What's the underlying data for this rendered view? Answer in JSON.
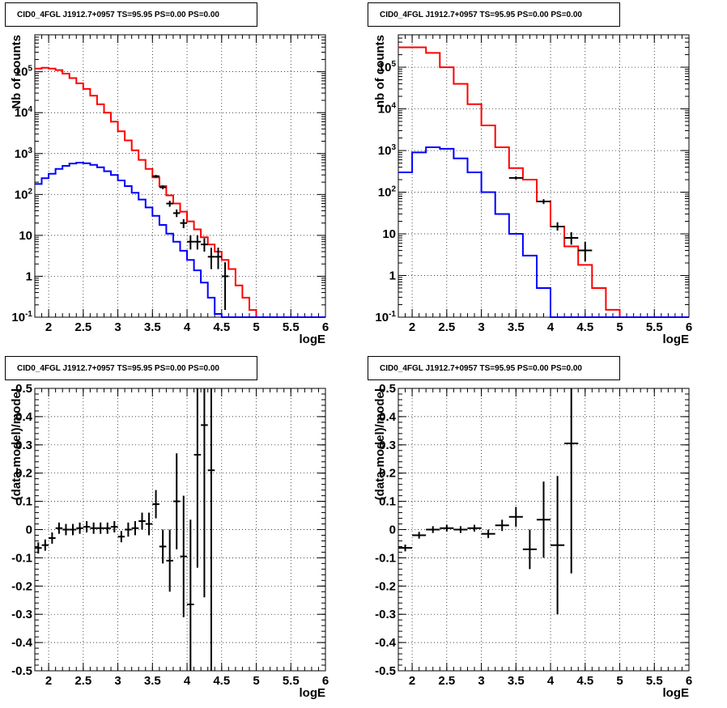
{
  "chart_data": [
    {
      "type": "line",
      "title": "CID0_4FGL J1912.7+0957 TS=95.95 PS=0.00 PS=0.00",
      "xlabel": "logE",
      "ylabel": "Nb of counts",
      "xlim": [
        1.8,
        6.0
      ],
      "ylim": [
        0.1,
        800000
      ],
      "yscale": "log",
      "grid": true,
      "xticks": [
        "2",
        "2.5",
        "3",
        "3.5",
        "4",
        "4.5",
        "5",
        "5.5",
        "6"
      ],
      "yticks": [
        "10^-1",
        "1",
        "10",
        "10^2",
        "10^3",
        "10^4",
        "10^5"
      ],
      "bin_edges": [
        1.8,
        1.9,
        2.0,
        2.1,
        2.2,
        2.3,
        2.4,
        2.5,
        2.6,
        2.7,
        2.8,
        2.9,
        3.0,
        3.1,
        3.2,
        3.3,
        3.4,
        3.5,
        3.6,
        3.7,
        3.8,
        3.9,
        4.0,
        4.1,
        4.2,
        4.3,
        4.4,
        4.5,
        4.6,
        4.7,
        4.8,
        4.9,
        5.0,
        5.1,
        5.2,
        5.3,
        5.4,
        5.5,
        5.6,
        5.7,
        5.8,
        5.9,
        6.0
      ],
      "series": [
        {
          "color": "#ff0000",
          "values": [
            120000,
            125000,
            120000,
            110000,
            90000,
            70000,
            52000,
            38000,
            26000,
            16000,
            10000,
            6000,
            3500,
            2100,
            1200,
            700,
            420,
            260,
            160,
            95,
            60,
            38,
            22,
            14,
            9,
            6,
            4,
            2.5,
            1.5,
            0.6,
            0.3,
            0.15,
            0.1,
            0.1,
            0.1,
            0.1,
            0.1,
            0.1,
            0.1,
            0.1,
            0.1,
            0.1
          ]
        },
        {
          "color": "#0000ff",
          "values": [
            180,
            250,
            320,
            420,
            500,
            570,
            600,
            580,
            530,
            460,
            370,
            300,
            220,
            160,
            110,
            75,
            48,
            30,
            18,
            11,
            7,
            4.2,
            2.5,
            1.4,
            0.7,
            0.3,
            0.12,
            0.1,
            0.1,
            0.1,
            0.1,
            0.1,
            0.1,
            0.1,
            0.1,
            0.1,
            0.1,
            0.1,
            0.1,
            0.1,
            0.1,
            0.1
          ]
        }
      ],
      "points": [
        {
          "x": 3.55,
          "y": 280,
          "yerr": [
            260,
            300
          ]
        },
        {
          "x": 3.65,
          "y": 150,
          "yerr": [
            135,
            165
          ]
        },
        {
          "x": 3.75,
          "y": 60,
          "yerr": [
            50,
            70
          ]
        },
        {
          "x": 3.85,
          "y": 35,
          "yerr": [
            28,
            43
          ]
        },
        {
          "x": 3.95,
          "y": 20,
          "yerr": [
            15,
            25
          ]
        },
        {
          "x": 4.05,
          "y": 7,
          "yerr": [
            4.5,
            10
          ]
        },
        {
          "x": 4.15,
          "y": 7,
          "yerr": [
            4.5,
            10
          ]
        },
        {
          "x": 4.25,
          "y": 6,
          "yerr": [
            4,
            8.5
          ]
        },
        {
          "x": 4.35,
          "y": 3,
          "yerr": [
            1.5,
            5
          ]
        },
        {
          "x": 4.45,
          "y": 3,
          "yerr": [
            1.5,
            5
          ]
        },
        {
          "x": 4.55,
          "y": 1,
          "yerr": [
            0.15,
            2.2
          ]
        }
      ]
    },
    {
      "type": "line",
      "title": "CID0_4FGL J1912.7+0957 TS=95.95 PS=0.00 PS=0.00",
      "xlabel": "logE",
      "ylabel": "nb of counts",
      "xlim": [
        1.8,
        6.0
      ],
      "ylim": [
        0.1,
        600000
      ],
      "yscale": "log",
      "grid": true,
      "xticks": [
        "2",
        "2.5",
        "3",
        "3.5",
        "4",
        "4.5",
        "5",
        "5.5",
        "6"
      ],
      "yticks": [
        "10^-1",
        "1",
        "10",
        "10^2",
        "10^3",
        "10^4",
        "10^5"
      ],
      "bin_edges": [
        1.8,
        2.0,
        2.2,
        2.4,
        2.6,
        2.8,
        3.0,
        3.2,
        3.4,
        3.6,
        3.8,
        4.0,
        4.2,
        4.4,
        4.6,
        4.8,
        5.0,
        5.2,
        5.4,
        5.6,
        5.8,
        6.0
      ],
      "series": [
        {
          "color": "#ff0000",
          "values": [
            300000,
            300000,
            220000,
            100000,
            40000,
            13000,
            4000,
            1200,
            380,
            200,
            60,
            15,
            5,
            1.8,
            0.5,
            0.15,
            0.1,
            0.1,
            0.1,
            0.1,
            0.1
          ]
        },
        {
          "color": "#0000ff",
          "values": [
            300,
            900,
            1200,
            1100,
            650,
            300,
            100,
            30,
            10,
            3,
            0.5,
            0.1,
            0.1,
            0.1,
            0.1,
            0.1,
            0.1,
            0.1,
            0.1,
            0.1,
            0.1
          ]
        }
      ],
      "points": [
        {
          "x": 3.5,
          "y": 220,
          "yerr": [
            200,
            240
          ]
        },
        {
          "x": 3.9,
          "y": 60,
          "yerr": [
            52,
            68
          ]
        },
        {
          "x": 4.1,
          "y": 15,
          "yerr": [
            12,
            19
          ]
        },
        {
          "x": 4.3,
          "y": 8,
          "yerr": [
            5.5,
            11
          ]
        },
        {
          "x": 4.5,
          "y": 4,
          "yerr": [
            2.2,
            6.5
          ]
        }
      ]
    },
    {
      "type": "scatter",
      "title": "CID0_4FGL J1912.7+0957 TS=95.95 PS=0.00 PS=0.00",
      "xlabel": "logE",
      "ylabel": "(data-model)/model",
      "xlim": [
        1.8,
        6.0
      ],
      "ylim": [
        -0.5,
        0.5
      ],
      "grid": true,
      "xticks": [
        "2",
        "2.5",
        "3",
        "3.5",
        "4",
        "4.5",
        "5",
        "5.5",
        "6"
      ],
      "yticks": [
        "-0.5",
        "-0.4",
        "-0.3",
        "-0.2",
        "-0.1",
        "0",
        "0.1",
        "0.2",
        "0.3",
        "0.4",
        "0.5"
      ],
      "points": [
        {
          "x": 1.85,
          "y": -0.065,
          "yerr": 0.02,
          "xerr": 0.05
        },
        {
          "x": 1.95,
          "y": -0.055,
          "yerr": 0.02,
          "xerr": 0.05
        },
        {
          "x": 2.05,
          "y": -0.03,
          "yerr": 0.02,
          "xerr": 0.05
        },
        {
          "x": 2.15,
          "y": 0.005,
          "yerr": 0.02,
          "xerr": 0.05
        },
        {
          "x": 2.25,
          "y": 0.0,
          "yerr": 0.02,
          "xerr": 0.05
        },
        {
          "x": 2.35,
          "y": 0.0,
          "yerr": 0.02,
          "xerr": 0.05
        },
        {
          "x": 2.45,
          "y": 0.005,
          "yerr": 0.02,
          "xerr": 0.05
        },
        {
          "x": 2.55,
          "y": 0.01,
          "yerr": 0.02,
          "xerr": 0.05
        },
        {
          "x": 2.65,
          "y": 0.005,
          "yerr": 0.02,
          "xerr": 0.05
        },
        {
          "x": 2.75,
          "y": 0.005,
          "yerr": 0.02,
          "xerr": 0.05
        },
        {
          "x": 2.85,
          "y": 0.005,
          "yerr": 0.02,
          "xerr": 0.05
        },
        {
          "x": 2.95,
          "y": 0.01,
          "yerr": 0.02,
          "xerr": 0.05
        },
        {
          "x": 3.05,
          "y": -0.025,
          "yerr": 0.02,
          "xerr": 0.05
        },
        {
          "x": 3.15,
          "y": 0.0,
          "yerr": 0.025,
          "xerr": 0.05
        },
        {
          "x": 3.25,
          "y": 0.005,
          "yerr": 0.025,
          "xerr": 0.05
        },
        {
          "x": 3.35,
          "y": 0.03,
          "yerr": 0.03,
          "xerr": 0.05
        },
        {
          "x": 3.45,
          "y": 0.02,
          "yerr": 0.04,
          "xerr": 0.05
        },
        {
          "x": 3.55,
          "y": 0.09,
          "yerr": 0.05,
          "xerr": 0.05
        },
        {
          "x": 3.65,
          "y": -0.06,
          "yerr": 0.06,
          "xerr": 0.05
        },
        {
          "x": 3.75,
          "y": -0.11,
          "yerr": 0.11,
          "xerr": 0.05
        },
        {
          "x": 3.85,
          "y": 0.1,
          "yerr": 0.17,
          "xerr": 0.05
        },
        {
          "x": 3.95,
          "y": -0.095,
          "yerr": 0.215,
          "xerr": 0.05
        },
        {
          "x": 4.05,
          "y": -0.265,
          "yerr": 0.3,
          "xerr": 0.05
        },
        {
          "x": 4.15,
          "y": 0.265,
          "yerr": 0.4,
          "xerr": 0.05
        },
        {
          "x": 4.25,
          "y": 0.37,
          "yerr": 0.61,
          "xerr": 0.05
        },
        {
          "x": 4.35,
          "y": 0.21,
          "yerr": 0.82,
          "xerr": 0.05
        }
      ]
    },
    {
      "type": "scatter",
      "title": "CID0_4FGL J1912.7+0957 TS=95.95 PS=0.00 PS=0.00",
      "xlabel": "logE",
      "ylabel": "(data-model)/model",
      "xlim": [
        1.8,
        6.0
      ],
      "ylim": [
        -0.5,
        0.5
      ],
      "grid": true,
      "xticks": [
        "2",
        "2.5",
        "3",
        "3.5",
        "4",
        "4.5",
        "5",
        "5.5",
        "6"
      ],
      "yticks": [
        "-0.5",
        "-0.4",
        "-0.3",
        "-0.2",
        "-0.1",
        "0",
        "0.1",
        "0.2",
        "0.3",
        "0.4",
        "0.5"
      ],
      "points": [
        {
          "x": 1.9,
          "y": -0.065,
          "yerr": 0.012,
          "xerr": 0.1
        },
        {
          "x": 2.1,
          "y": -0.02,
          "yerr": 0.012,
          "xerr": 0.1
        },
        {
          "x": 2.3,
          "y": 0.0,
          "yerr": 0.012,
          "xerr": 0.1
        },
        {
          "x": 2.5,
          "y": 0.005,
          "yerr": 0.012,
          "xerr": 0.1
        },
        {
          "x": 2.7,
          "y": 0.0,
          "yerr": 0.012,
          "xerr": 0.1
        },
        {
          "x": 2.9,
          "y": 0.005,
          "yerr": 0.012,
          "xerr": 0.1
        },
        {
          "x": 3.1,
          "y": -0.015,
          "yerr": 0.015,
          "xerr": 0.1
        },
        {
          "x": 3.3,
          "y": 0.015,
          "yerr": 0.02,
          "xerr": 0.1
        },
        {
          "x": 3.5,
          "y": 0.045,
          "yerr": 0.035,
          "xerr": 0.1
        },
        {
          "x": 3.7,
          "y": -0.07,
          "yerr": 0.07,
          "xerr": 0.1
        },
        {
          "x": 3.9,
          "y": 0.035,
          "yerr": 0.135,
          "xerr": 0.1
        },
        {
          "x": 4.1,
          "y": -0.055,
          "yerr": 0.245,
          "xerr": 0.1
        },
        {
          "x": 4.3,
          "y": 0.305,
          "yerr": 0.46,
          "xerr": 0.1
        }
      ]
    }
  ]
}
